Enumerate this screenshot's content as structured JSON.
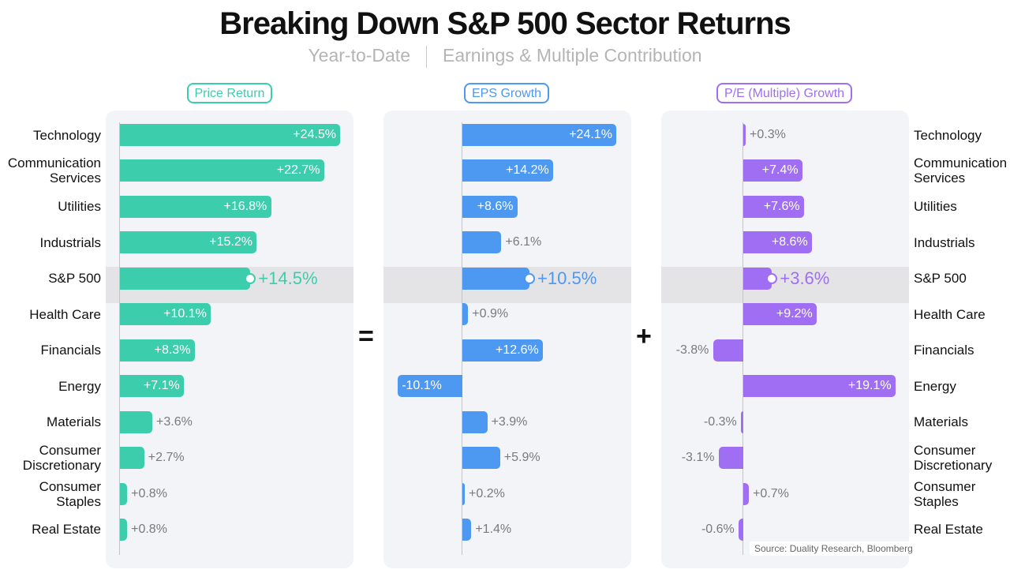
{
  "header": {
    "title": "Breaking Down S&P 500 Sector Returns",
    "subtitle_left": "Year-to-Date",
    "subtitle_right": "Earnings & Multiple Contribution"
  },
  "operators": {
    "equals": "=",
    "plus": "+"
  },
  "source": "Source: Duality Research, Bloomberg",
  "chart_data": {
    "type": "bar",
    "orientation": "horizontal",
    "highlight_category": "S&P 500",
    "categories": [
      "Technology",
      "Communication Services",
      "Utilities",
      "Industrials",
      "S&P 500",
      "Health Care",
      "Financials",
      "Energy",
      "Materials",
      "Consumer Discretionary",
      "Consumer Staples",
      "Real Estate"
    ],
    "category_lines": [
      [
        "Technology"
      ],
      [
        "Communication",
        "Services"
      ],
      [
        "Utilities"
      ],
      [
        "Industrials"
      ],
      [
        "S&P 500"
      ],
      [
        "Health Care"
      ],
      [
        "Financials"
      ],
      [
        "Energy"
      ],
      [
        "Materials"
      ],
      [
        "Consumer",
        "Discretionary"
      ],
      [
        "Consumer",
        "Staples"
      ],
      [
        "Real Estate"
      ]
    ],
    "series": [
      {
        "name": "Price Return",
        "color": "#3ccdad",
        "values": [
          24.5,
          22.7,
          16.8,
          15.2,
          14.5,
          10.1,
          8.3,
          7.1,
          3.6,
          2.7,
          0.8,
          0.8
        ],
        "labels": [
          "+24.5%",
          "+22.7%",
          "+16.8%",
          "+15.2%",
          "+14.5%",
          "+10.1%",
          "+8.3%",
          "+7.1%",
          "+3.6%",
          "+2.7%",
          "+0.8%",
          "+0.8%"
        ]
      },
      {
        "name": "EPS Growth",
        "color": "#4d98f0",
        "values": [
          24.1,
          14.2,
          8.6,
          6.1,
          10.5,
          0.9,
          12.6,
          -10.1,
          3.9,
          5.9,
          0.2,
          1.4
        ],
        "labels": [
          "+24.1%",
          "+14.2%",
          "+8.6%",
          "+6.1%",
          "+10.5%",
          "+0.9%",
          "+12.6%",
          "-10.1%",
          "+3.9%",
          "+5.9%",
          "+0.2%",
          "+1.4%"
        ]
      },
      {
        "name": "P/E (Multiple) Growth",
        "color": "#a06ef3",
        "values": [
          0.3,
          7.4,
          7.6,
          8.6,
          3.6,
          9.2,
          -3.8,
          19.1,
          -0.3,
          -3.1,
          0.7,
          -0.6
        ],
        "labels": [
          "+0.3%",
          "+7.4%",
          "+7.6%",
          "+8.6%",
          "+3.6%",
          "+9.2%",
          "-3.8%",
          "+19.1%",
          "-0.3%",
          "-3.1%",
          "+0.7%",
          "-0.6%"
        ]
      }
    ]
  }
}
